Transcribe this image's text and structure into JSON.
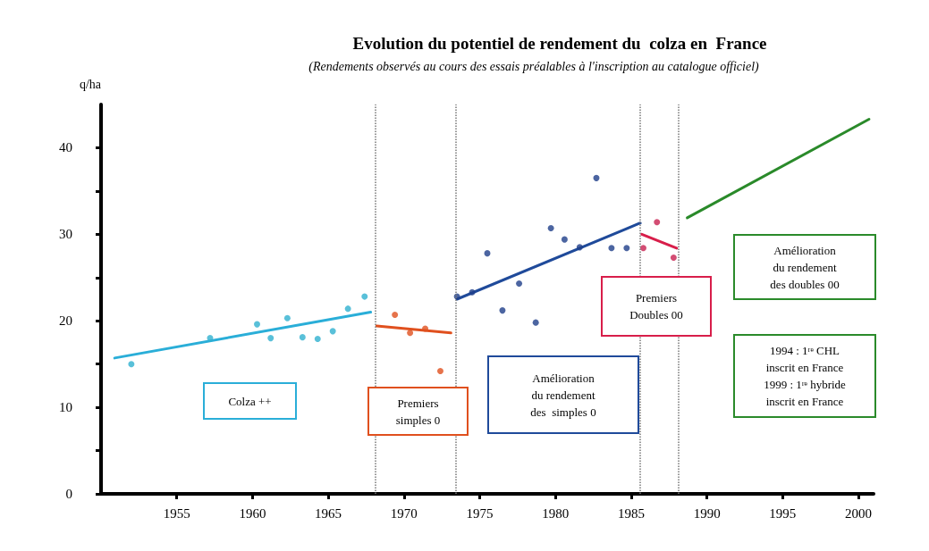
{
  "chart_data": {
    "type": "scatter",
    "title": "Evolution du potentiel de rendement du  colza en  France",
    "subtitle": "(Rendements observés au cours des essais préalables à l'inscription au catalogue officiel)",
    "ylabel": "q/ha",
    "xlim": [
      1950,
      2001
    ],
    "xticks": [
      1955,
      1960,
      1965,
      1970,
      1975,
      1980,
      1985,
      1990,
      1995,
      2000
    ],
    "ylim": [
      0,
      45
    ],
    "yticks": [
      0,
      {
        "value": 5,
        "label": null
      },
      10,
      {
        "value": 15,
        "label": null
      },
      20,
      {
        "value": 25,
        "label": null
      },
      30,
      {
        "value": 35,
        "label": null
      },
      40
    ],
    "grid": false,
    "series": [
      {
        "color": "#30b0d0",
        "x": [
          1952.0,
          1957.2,
          1960.3,
          1961.2,
          1962.3,
          1963.3,
          1964.3,
          1965.3,
          1966.3,
          1967.4
        ],
        "values": [
          15.0,
          18.0,
          19.6,
          18.0,
          20.3,
          18.1,
          17.9,
          18.8,
          21.4,
          22.8
        ]
      },
      {
        "type": "line",
        "color": "#2aaed8",
        "x": [
          1950.9,
          1967.8
        ],
        "values": [
          15.7,
          21.0
        ]
      },
      {
        "color": "#e0501e",
        "x": [
          1969.4,
          1970.4,
          1971.4,
          1972.4
        ],
        "values": [
          20.7,
          18.6,
          19.1,
          14.2
        ]
      },
      {
        "type": "line",
        "color": "#e0501e",
        "x": [
          1968.2,
          1973.1
        ],
        "values": [
          19.4,
          18.6
        ]
      },
      {
        "color": "#1f3f8a",
        "x": [
          1973.5,
          1974.5,
          1975.5,
          1976.5,
          1977.6,
          1978.7,
          1979.7,
          1980.6,
          1981.6,
          1982.7,
          1983.7,
          1984.7
        ],
        "values": [
          22.8,
          23.3,
          27.8,
          21.2,
          24.3,
          19.8,
          30.7,
          29.4,
          28.5,
          36.5,
          28.4,
          28.4
        ]
      },
      {
        "type": "line",
        "color": "#1f4a9a",
        "x": [
          1973.5,
          1985.6
        ],
        "values": [
          22.5,
          31.3
        ]
      },
      {
        "color": "#c82050",
        "x": [
          1985.8,
          1986.7,
          1987.8
        ],
        "values": [
          28.4,
          31.4,
          27.3
        ]
      },
      {
        "type": "line",
        "color": "#d81e4a",
        "x": [
          1985.7,
          1988.0
        ],
        "values": [
          30.0,
          28.4
        ]
      },
      {
        "type": "line",
        "color": "#2a8a2a",
        "x": [
          1988.7,
          2000.7
        ],
        "values": [
          31.9,
          43.3
        ]
      }
    ],
    "ref_lines": [
      {
        "axis": "x",
        "value": 1968.1,
        "color": "#777777",
        "line_style": "dotted"
      },
      {
        "axis": "x",
        "value": 1973.4,
        "color": "#777777",
        "line_style": "dotted"
      },
      {
        "axis": "x",
        "value": 1985.6,
        "color": "#777777",
        "line_style": "dotted"
      },
      {
        "axis": "x",
        "value": 1988.1,
        "color": "#777777",
        "line_style": "dotted"
      }
    ],
    "annotations": [
      "Colza ++",
      "Premiers\nsimples 0",
      "Amélioration\ndu rendement\ndes  simples 0",
      "Premiers\nDoubles 00",
      "Amélioration\ndu rendement\ndes doubles 00",
      "1994 : 1ʳᵉ CHL\ninscrit en France\n1999 : 1ʳᵉ hybride\ninscrit en France"
    ]
  }
}
